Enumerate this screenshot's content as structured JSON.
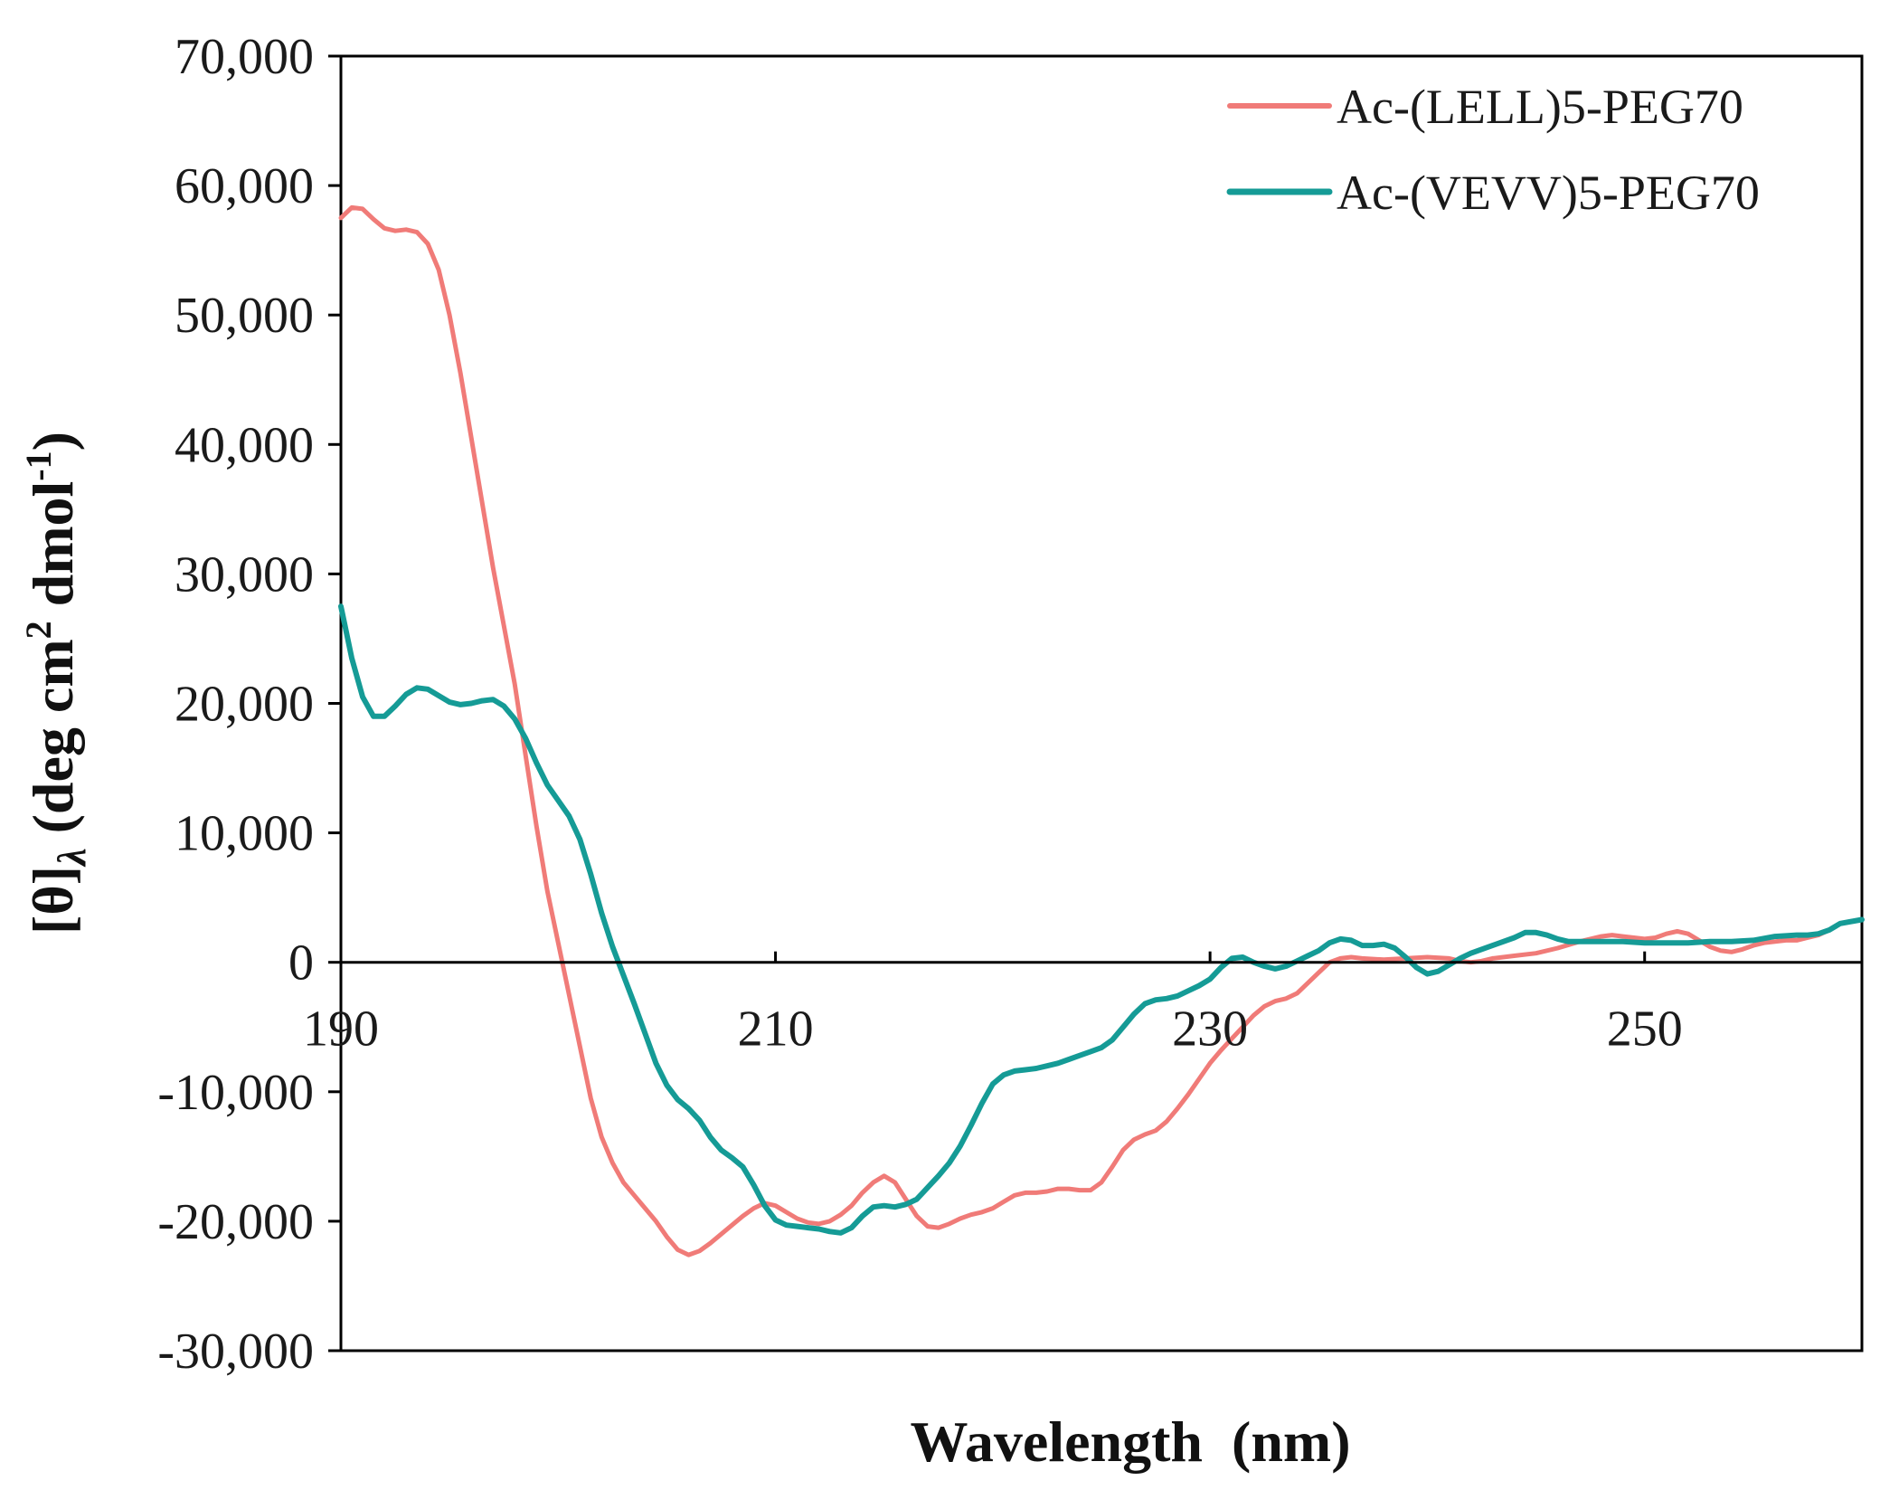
{
  "chart_data": {
    "type": "line",
    "title": "",
    "xlabel": "Wavelength  (nm)",
    "ylabel": {
      "main": "[θ]",
      "sub": "λ",
      "unit_open": " (deg cm",
      "unit_sup1": "2",
      "unit_mid": " dmol",
      "unit_sup2": "-1",
      "unit_close": ")"
    },
    "xlim": [
      190,
      260
    ],
    "ylim": [
      -30000,
      70000
    ],
    "x_ticks": [
      190,
      210,
      230,
      250
    ],
    "x_tick_labels": [
      "190",
      "210",
      "230",
      "250"
    ],
    "y_ticks": [
      70000,
      60000,
      50000,
      40000,
      30000,
      20000,
      10000,
      0,
      -10000,
      -20000,
      -30000
    ],
    "y_tick_labels": [
      "70,000",
      "60,000",
      "50,000",
      "40,000",
      "30,000",
      "20,000",
      "10,000",
      "0",
      "-10,000",
      "-20,000",
      "-30,000"
    ],
    "grid": false,
    "legend_position": "top-right",
    "series": [
      {
        "name": "Ac-(LELL)5-PEG70",
        "color": "#f07b78",
        "points": [
          [
            190,
            57500
          ],
          [
            190.5,
            58300
          ],
          [
            191,
            58200
          ],
          [
            191.5,
            57400
          ],
          [
            192,
            56700
          ],
          [
            192.5,
            56500
          ],
          [
            193,
            56600
          ],
          [
            193.5,
            56400
          ],
          [
            194,
            55500
          ],
          [
            194.5,
            53500
          ],
          [
            195,
            50000
          ],
          [
            195.5,
            45500
          ],
          [
            196,
            40500
          ],
          [
            196.5,
            35500
          ],
          [
            197,
            30500
          ],
          [
            197.5,
            26000
          ],
          [
            198,
            21500
          ],
          [
            198.5,
            16000
          ],
          [
            199,
            10500
          ],
          [
            199.5,
            5500
          ],
          [
            200,
            1500
          ],
          [
            200.5,
            -2500
          ],
          [
            201,
            -6500
          ],
          [
            201.5,
            -10500
          ],
          [
            202,
            -13500
          ],
          [
            202.5,
            -15500
          ],
          [
            203,
            -17000
          ],
          [
            203.5,
            -18000
          ],
          [
            204,
            -19000
          ],
          [
            204.5,
            -20000
          ],
          [
            205,
            -21200
          ],
          [
            205.5,
            -22200
          ],
          [
            206,
            -22600
          ],
          [
            206.5,
            -22300
          ],
          [
            207,
            -21700
          ],
          [
            207.5,
            -21000
          ],
          [
            208,
            -20300
          ],
          [
            208.5,
            -19600
          ],
          [
            209,
            -19000
          ],
          [
            209.5,
            -18600
          ],
          [
            210,
            -18800
          ],
          [
            210.5,
            -19300
          ],
          [
            211,
            -19800
          ],
          [
            211.5,
            -20100
          ],
          [
            212,
            -20200
          ],
          [
            212.5,
            -20000
          ],
          [
            213,
            -19500
          ],
          [
            213.5,
            -18800
          ],
          [
            214,
            -17800
          ],
          [
            214.5,
            -17000
          ],
          [
            215,
            -16500
          ],
          [
            215.5,
            -17000
          ],
          [
            216,
            -18300
          ],
          [
            216.5,
            -19600
          ],
          [
            217,
            -20400
          ],
          [
            217.5,
            -20500
          ],
          [
            218,
            -20200
          ],
          [
            218.5,
            -19800
          ],
          [
            219,
            -19500
          ],
          [
            219.5,
            -19300
          ],
          [
            220,
            -19000
          ],
          [
            220.5,
            -18500
          ],
          [
            221,
            -18000
          ],
          [
            221.5,
            -17800
          ],
          [
            222,
            -17800
          ],
          [
            222.5,
            -17700
          ],
          [
            223,
            -17500
          ],
          [
            223.5,
            -17500
          ],
          [
            224,
            -17600
          ],
          [
            224.5,
            -17600
          ],
          [
            225,
            -17000
          ],
          [
            225.5,
            -15800
          ],
          [
            226,
            -14500
          ],
          [
            226.5,
            -13700
          ],
          [
            227,
            -13300
          ],
          [
            227.5,
            -13000
          ],
          [
            228,
            -12300
          ],
          [
            228.5,
            -11300
          ],
          [
            229,
            -10200
          ],
          [
            229.5,
            -9000
          ],
          [
            230,
            -7800
          ],
          [
            230.5,
            -6800
          ],
          [
            231,
            -5900
          ],
          [
            231.5,
            -5000
          ],
          [
            232,
            -4100
          ],
          [
            232.5,
            -3400
          ],
          [
            233,
            -3000
          ],
          [
            233.5,
            -2800
          ],
          [
            234,
            -2400
          ],
          [
            234.5,
            -1600
          ],
          [
            235,
            -800
          ],
          [
            235.5,
            0
          ],
          [
            236,
            300
          ],
          [
            236.5,
            400
          ],
          [
            237,
            300
          ],
          [
            238,
            200
          ],
          [
            239,
            300
          ],
          [
            240,
            400
          ],
          [
            241,
            300
          ],
          [
            241.5,
            100
          ],
          [
            242,
            0
          ],
          [
            242.5,
            100
          ],
          [
            243,
            300
          ],
          [
            244,
            500
          ],
          [
            245,
            700
          ],
          [
            246,
            1100
          ],
          [
            247,
            1600
          ],
          [
            248,
            2000
          ],
          [
            248.5,
            2100
          ],
          [
            249,
            2000
          ],
          [
            249.5,
            1900
          ],
          [
            250,
            1800
          ],
          [
            250.5,
            1900
          ],
          [
            251,
            2200
          ],
          [
            251.5,
            2400
          ],
          [
            252,
            2200
          ],
          [
            252.5,
            1700
          ],
          [
            253,
            1200
          ],
          [
            253.5,
            900
          ],
          [
            254,
            800
          ],
          [
            254.5,
            1000
          ],
          [
            255,
            1300
          ],
          [
            255.5,
            1500
          ],
          [
            256,
            1600
          ],
          [
            256.5,
            1700
          ],
          [
            257,
            1700
          ],
          [
            257.5,
            1900
          ],
          [
            258,
            2100
          ],
          [
            258.5,
            2500
          ],
          [
            259,
            3000
          ],
          [
            260,
            3300
          ]
        ]
      },
      {
        "name": "Ac-(VEVV)5-PEG70",
        "color": "#159b96",
        "points": [
          [
            190,
            27500
          ],
          [
            190.5,
            23500
          ],
          [
            191,
            20500
          ],
          [
            191.5,
            19000
          ],
          [
            192,
            19000
          ],
          [
            192.5,
            19800
          ],
          [
            193,
            20700
          ],
          [
            193.5,
            21200
          ],
          [
            194,
            21100
          ],
          [
            194.5,
            20600
          ],
          [
            195,
            20100
          ],
          [
            195.5,
            19900
          ],
          [
            196,
            20000
          ],
          [
            196.5,
            20200
          ],
          [
            197,
            20300
          ],
          [
            197.5,
            19800
          ],
          [
            198,
            18800
          ],
          [
            198.5,
            17300
          ],
          [
            199,
            15400
          ],
          [
            199.5,
            13700
          ],
          [
            200,
            12500
          ],
          [
            200.5,
            11300
          ],
          [
            201,
            9500
          ],
          [
            201.5,
            6800
          ],
          [
            202,
            3800
          ],
          [
            202.5,
            1200
          ],
          [
            203,
            -1000
          ],
          [
            203.5,
            -3200
          ],
          [
            204,
            -5500
          ],
          [
            204.5,
            -7800
          ],
          [
            205,
            -9500
          ],
          [
            205.5,
            -10600
          ],
          [
            206,
            -11300
          ],
          [
            206.5,
            -12200
          ],
          [
            207,
            -13500
          ],
          [
            207.5,
            -14500
          ],
          [
            208,
            -15100
          ],
          [
            208.5,
            -15800
          ],
          [
            209,
            -17200
          ],
          [
            209.5,
            -18800
          ],
          [
            210,
            -19900
          ],
          [
            210.5,
            -20300
          ],
          [
            211,
            -20400
          ],
          [
            211.5,
            -20500
          ],
          [
            212,
            -20600
          ],
          [
            212.5,
            -20800
          ],
          [
            213,
            -20900
          ],
          [
            213.5,
            -20500
          ],
          [
            214,
            -19600
          ],
          [
            214.5,
            -18900
          ],
          [
            215,
            -18800
          ],
          [
            215.5,
            -18900
          ],
          [
            216,
            -18700
          ],
          [
            216.5,
            -18300
          ],
          [
            217,
            -17400
          ],
          [
            217.5,
            -16500
          ],
          [
            218,
            -15500
          ],
          [
            218.5,
            -14200
          ],
          [
            219,
            -12600
          ],
          [
            219.5,
            -10900
          ],
          [
            220,
            -9400
          ],
          [
            220.5,
            -8700
          ],
          [
            221,
            -8400
          ],
          [
            221.5,
            -8300
          ],
          [
            222,
            -8200
          ],
          [
            222.5,
            -8000
          ],
          [
            223,
            -7800
          ],
          [
            223.5,
            -7500
          ],
          [
            224,
            -7200
          ],
          [
            224.5,
            -6900
          ],
          [
            225,
            -6600
          ],
          [
            225.5,
            -6000
          ],
          [
            226,
            -5000
          ],
          [
            226.5,
            -4000
          ],
          [
            227,
            -3200
          ],
          [
            227.5,
            -2900
          ],
          [
            228,
            -2800
          ],
          [
            228.5,
            -2600
          ],
          [
            229,
            -2200
          ],
          [
            229.5,
            -1800
          ],
          [
            230,
            -1300
          ],
          [
            230.5,
            -400
          ],
          [
            231,
            300
          ],
          [
            231.5,
            400
          ],
          [
            232,
            0
          ],
          [
            232.5,
            -300
          ],
          [
            233,
            -500
          ],
          [
            233.5,
            -300
          ],
          [
            234,
            100
          ],
          [
            234.5,
            500
          ],
          [
            235,
            900
          ],
          [
            235.5,
            1500
          ],
          [
            236,
            1800
          ],
          [
            236.5,
            1700
          ],
          [
            237,
            1300
          ],
          [
            237.5,
            1300
          ],
          [
            238,
            1400
          ],
          [
            238.5,
            1100
          ],
          [
            239,
            400
          ],
          [
            239.5,
            -400
          ],
          [
            240,
            -900
          ],
          [
            240.5,
            -700
          ],
          [
            241,
            -200
          ],
          [
            241.5,
            300
          ],
          [
            242,
            700
          ],
          [
            243,
            1300
          ],
          [
            244,
            1900
          ],
          [
            244.5,
            2300
          ],
          [
            245,
            2300
          ],
          [
            245.5,
            2100
          ],
          [
            246,
            1800
          ],
          [
            246.5,
            1600
          ],
          [
            247,
            1600
          ],
          [
            248,
            1600
          ],
          [
            249,
            1600
          ],
          [
            250,
            1500
          ],
          [
            251,
            1500
          ],
          [
            252,
            1500
          ],
          [
            253,
            1600
          ],
          [
            254,
            1600
          ],
          [
            255,
            1700
          ],
          [
            256,
            2000
          ],
          [
            257,
            2100
          ],
          [
            257.5,
            2100
          ],
          [
            258,
            2200
          ],
          [
            258.5,
            2500
          ],
          [
            259,
            3000
          ],
          [
            260,
            3300
          ]
        ]
      }
    ]
  }
}
